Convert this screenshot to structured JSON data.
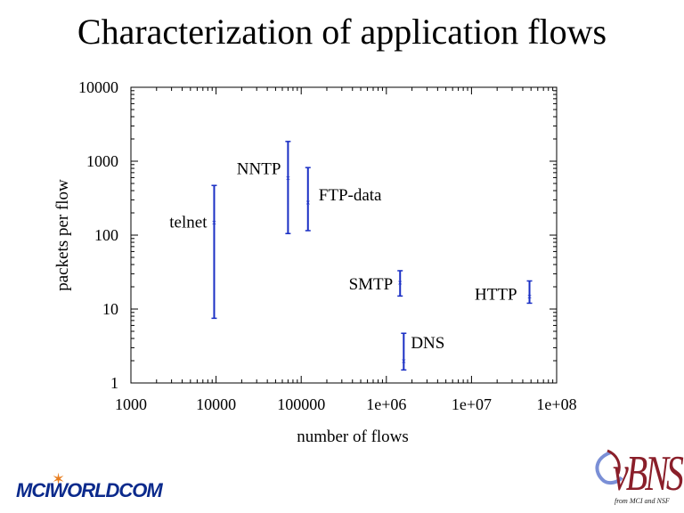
{
  "slide": {
    "title": "Characterization of application flows"
  },
  "logos": {
    "left": "MCIWORLDCOM",
    "right": "vBNS",
    "right_sub": "from MCI and NSF"
  },
  "chart_data": {
    "type": "scatter",
    "xlabel": "number of flows",
    "ylabel": "packets per flow",
    "x_scale": "log",
    "y_scale": "log",
    "xlim": [
      1000,
      100000000
    ],
    "ylim": [
      1,
      10000
    ],
    "x_ticks": [
      1000,
      10000,
      100000,
      1000000,
      10000000,
      100000000
    ],
    "x_tick_labels": [
      "1000",
      "10000",
      "100000",
      "1e+06",
      "1e+07",
      "1e+08"
    ],
    "y_ticks": [
      1,
      10,
      100,
      1000,
      10000
    ],
    "y_tick_labels": [
      "1",
      "10",
      "100",
      "1000",
      "10000"
    ],
    "grid": false,
    "error_color": "#1a2fc4",
    "points": [
      {
        "label": "telnet",
        "x": 9500,
        "y": 150,
        "y_low": 7.5,
        "y_high": 470
      },
      {
        "label": "NNTP",
        "x": 70000,
        "y": 600,
        "y_low": 105,
        "y_high": 1850
      },
      {
        "label": "FTP-data",
        "x": 120000,
        "y": 280,
        "y_low": 115,
        "y_high": 820
      },
      {
        "label": "SMTP",
        "x": 1450000,
        "y": 23,
        "y_low": 15,
        "y_high": 33
      },
      {
        "label": "DNS",
        "x": 1600000,
        "y": 2,
        "y_low": 1.5,
        "y_high": 4.7
      },
      {
        "label": "HTTP",
        "x": 48000000,
        "y": 15,
        "y_low": 12,
        "y_high": 24
      }
    ]
  }
}
